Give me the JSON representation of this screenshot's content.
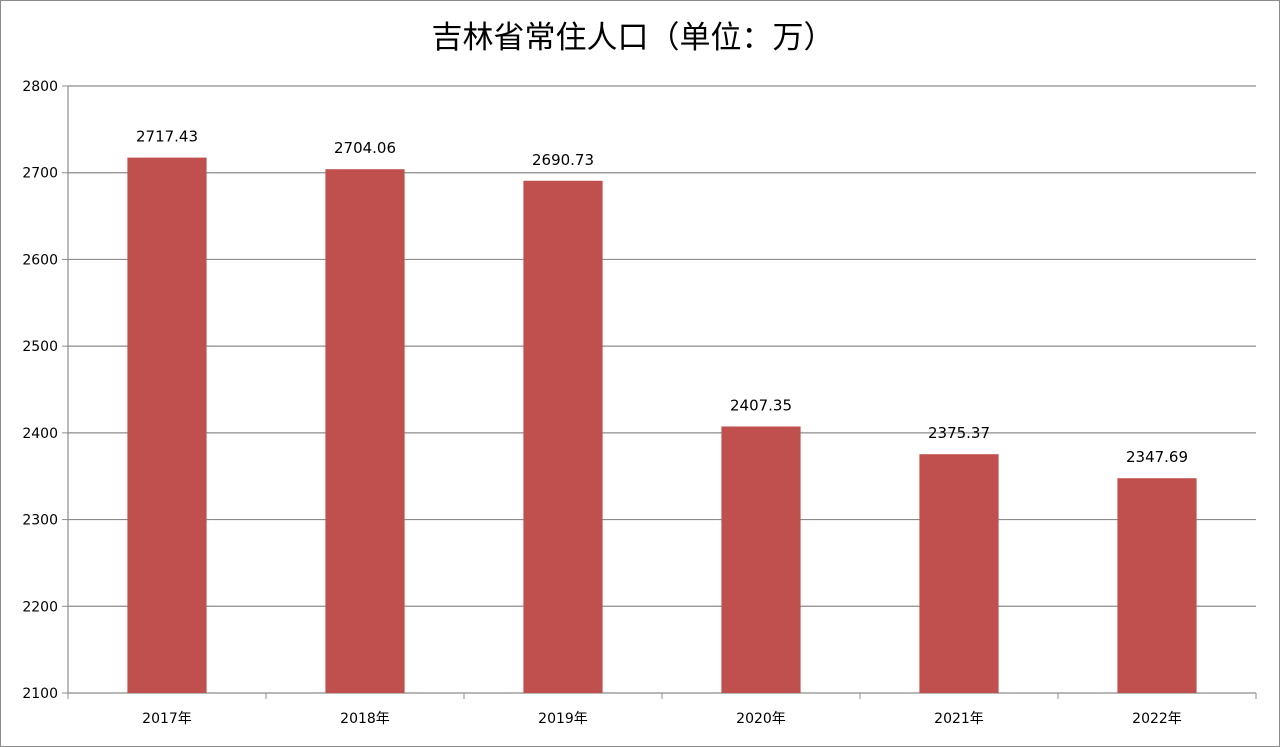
{
  "chart_data": {
    "type": "bar",
    "title": "吉林省常住人口（单位：万）",
    "categories": [
      "2017年",
      "2018年",
      "2019年",
      "2020年",
      "2021年",
      "2022年"
    ],
    "series": [
      {
        "values": [
          2717.43,
          2704.06,
          2690.73,
          2407.35,
          2375.37,
          2347.69
        ],
        "labels": [
          "2717.43",
          "2704.06",
          "2690.73",
          "2407.35",
          "2375.37",
          "2347.69"
        ],
        "color": "#c0504d"
      }
    ],
    "ylim": [
      2100,
      2800
    ],
    "yticks": [
      "2100",
      "2200",
      "2300",
      "2400",
      "2500",
      "2600",
      "2700",
      "2800"
    ],
    "grid": true,
    "legend": "none",
    "colors": {
      "grid": "#8c8c8c",
      "axis": "#8c8c8c",
      "bar": "#c0504d"
    }
  }
}
